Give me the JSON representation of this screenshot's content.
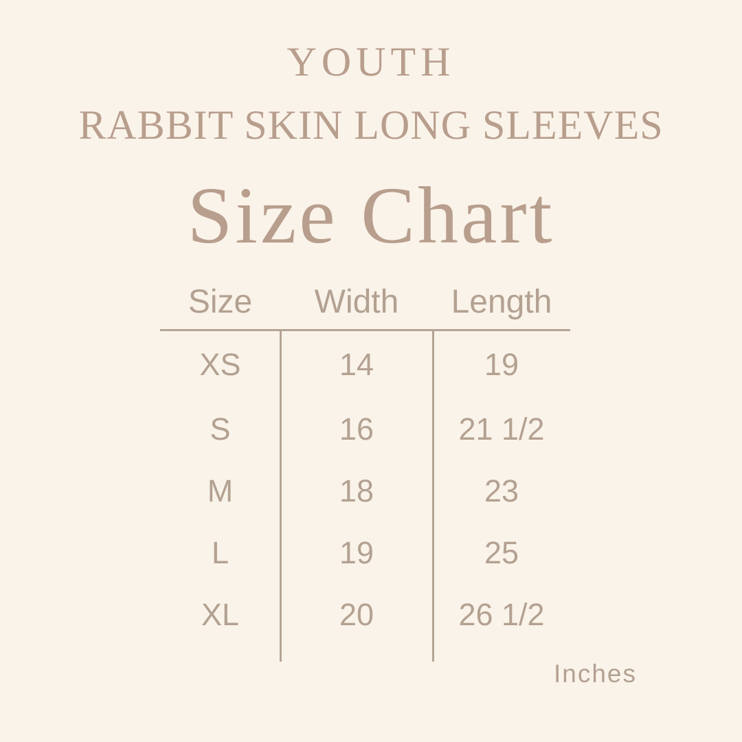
{
  "colors": {
    "background": "#faf3e9",
    "heading_text": "#b89e8d",
    "table_text": "#b3a191",
    "table_lines": "#b5a394"
  },
  "chart_data": {
    "type": "table",
    "subtitle_lines": [
      "YOUTH",
      "RABBIT SKIN LONG SLEEVES"
    ],
    "title": "Size Chart",
    "columns": [
      "Size",
      "Width",
      "Length"
    ],
    "rows": [
      [
        "XS",
        "14",
        "19"
      ],
      [
        "S",
        "16",
        "21 1/2"
      ],
      [
        "M",
        "18",
        "23"
      ],
      [
        "L",
        "19",
        "25"
      ],
      [
        "XL",
        "20",
        "26 1/2"
      ]
    ],
    "unit": "Inches",
    "layout": {
      "legend": "none",
      "grid": "header-rule-plus-two-column-dividers"
    }
  }
}
